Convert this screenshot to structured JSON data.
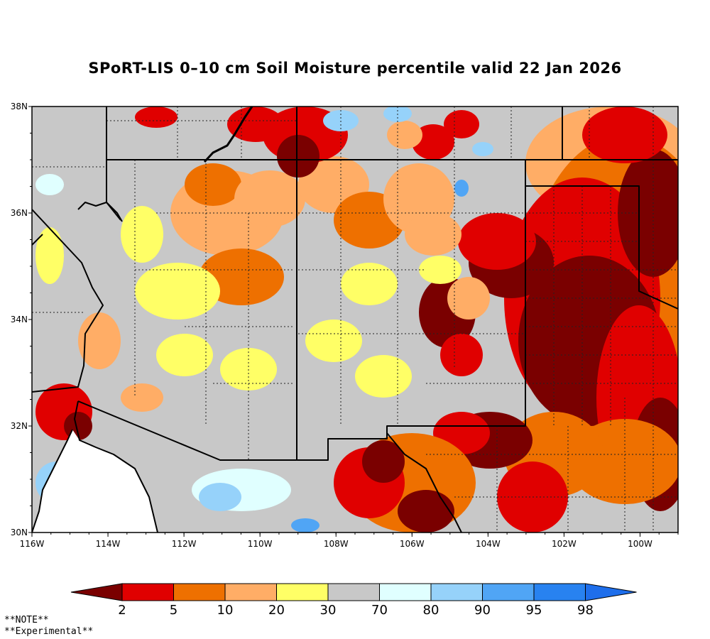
{
  "title": "SPoRT-LIS 0–10 cm Soil Moisture percentile valid 22 Jan 2026",
  "map": {
    "lon_range": [
      -116,
      -99
    ],
    "lat_range": [
      30,
      38
    ],
    "x_ticks": [
      {
        "lon": -116,
        "label": "116W"
      },
      {
        "lon": -114,
        "label": "114W"
      },
      {
        "lon": -112,
        "label": "112W"
      },
      {
        "lon": -110,
        "label": "110W"
      },
      {
        "lon": -108,
        "label": "108W"
      },
      {
        "lon": -106,
        "label": "106W"
      },
      {
        "lon": -104,
        "label": "104W"
      },
      {
        "lon": -102,
        "label": "102W"
      },
      {
        "lon": -100,
        "label": "100W"
      }
    ],
    "y_ticks": [
      {
        "lat": 30,
        "label": "30N"
      },
      {
        "lat": 32,
        "label": "32N"
      },
      {
        "lat": 34,
        "label": "34N"
      },
      {
        "lat": 36,
        "label": "36N"
      },
      {
        "lat": 38,
        "label": "38N"
      }
    ]
  },
  "colorbar": {
    "colors": [
      "#7a0000",
      "#e00000",
      "#ee7000",
      "#ffad66",
      "#ffff66",
      "#c8c8c8",
      "#e0ffff",
      "#96d2fa",
      "#50a5f5",
      "#2882f0",
      "#1e6eeb"
    ],
    "labels": [
      "2",
      "5",
      "10",
      "20",
      "30",
      "70",
      "80",
      "90",
      "95",
      "98"
    ]
  },
  "note": {
    "line1": "**NOTE**",
    "line2": "**Experimental**"
  }
}
